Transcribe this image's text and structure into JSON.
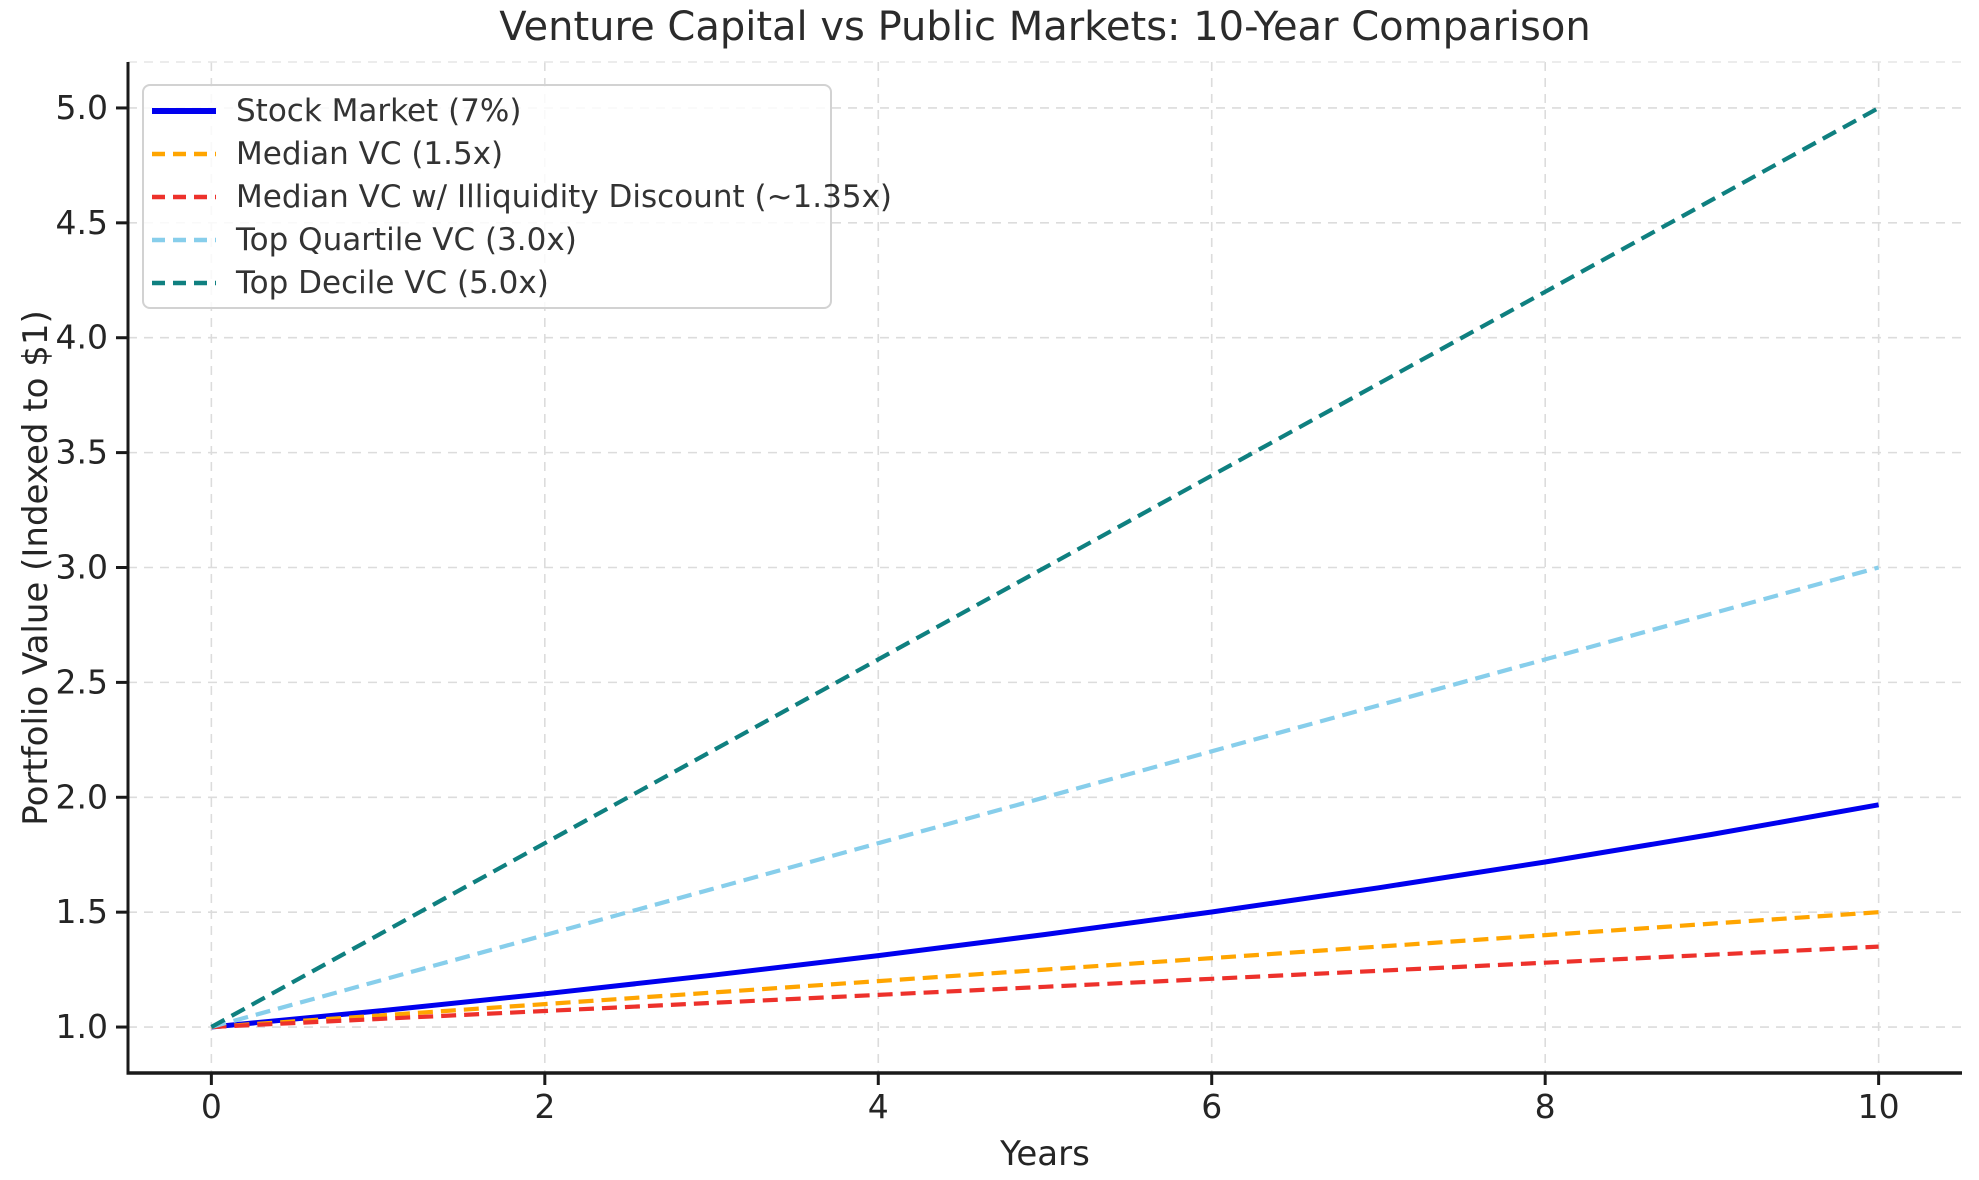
{
  "chart_data": {
    "type": "line",
    "title": "Venture Capital vs Public Markets: 10-Year Comparison",
    "xlabel": "Years",
    "ylabel": "Portfolio Value (Indexed to $1)",
    "x": [
      0,
      1,
      2,
      3,
      4,
      5,
      6,
      7,
      8,
      9,
      10
    ],
    "xlim": [
      -0.5,
      10.5
    ],
    "ylim": [
      0.8,
      5.2
    ],
    "xticks": [
      0,
      2,
      4,
      6,
      8,
      10
    ],
    "xtick_labels": [
      "0",
      "2",
      "4",
      "6",
      "8",
      "10"
    ],
    "yticks": [
      1.0,
      1.5,
      2.0,
      2.5,
      3.0,
      3.5,
      4.0,
      4.5,
      5.0
    ],
    "ytick_labels": [
      "1.0",
      "1.5",
      "2.0",
      "2.5",
      "3.0",
      "3.5",
      "4.0",
      "4.5",
      "5.0"
    ],
    "grid": true,
    "legend_position": "upper-left",
    "colors": {
      "axis": "#1a1a1a",
      "grid": "#dcdcdc",
      "tick_text": "#252525",
      "title_text": "#2b2b2b",
      "legend_text": "#333333",
      "legend_border": "#d2d2d2"
    },
    "series": [
      {
        "label": "Stock Market (7%)",
        "color": "#0000EE",
        "line_style": "solid",
        "values": [
          1.0,
          1.07,
          1.1449,
          1.225,
          1.3108,
          1.4026,
          1.5007,
          1.6058,
          1.7182,
          1.8385,
          1.9672
        ]
      },
      {
        "label": "Median VC (1.5x)",
        "color": "#FFA500",
        "line_style": "dashed",
        "values": [
          1.0,
          1.05,
          1.1,
          1.15,
          1.2,
          1.25,
          1.3,
          1.35,
          1.4,
          1.45,
          1.5
        ]
      },
      {
        "label": "Median VC w/ Illiquidity Discount (~1.35x)",
        "color": "#ED312B",
        "line_style": "dashed",
        "values": [
          1.0,
          1.035,
          1.07,
          1.105,
          1.14,
          1.175,
          1.21,
          1.245,
          1.28,
          1.315,
          1.35
        ]
      },
      {
        "label": "Top Quartile VC (3.0x)",
        "color": "#87CEEB",
        "line_style": "dashed",
        "values": [
          1.0,
          1.2,
          1.4,
          1.6,
          1.8,
          2.0,
          2.2,
          2.4,
          2.6,
          2.8,
          3.0
        ]
      },
      {
        "label": "Top Decile VC (5.0x)",
        "color": "#0F8080",
        "line_style": "dashed",
        "values": [
          1.0,
          1.4,
          1.8,
          2.2,
          2.6,
          3.0,
          3.4,
          3.8,
          4.2,
          4.6,
          5.0
        ]
      }
    ]
  }
}
